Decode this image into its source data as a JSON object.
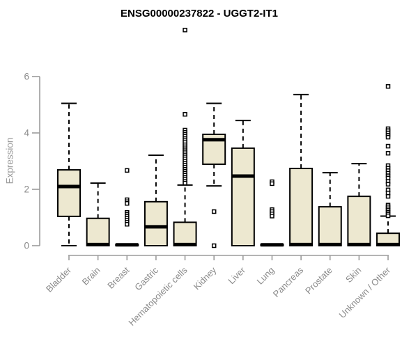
{
  "page": {
    "background": "#ffffff"
  },
  "chart_data": {
    "type": "boxplot",
    "title": "ENSG00000237822 - UGGT2-IT1",
    "ylabel": "Expression",
    "xlabel": "",
    "ylim": [
      0,
      6
    ],
    "yticks": [
      0,
      2,
      4,
      6
    ],
    "grid": false,
    "legend": "none",
    "categories": [
      "Bladder",
      "Brain",
      "Breast",
      "Gastric",
      "Hematopoietic cells",
      "Kidney",
      "Liver",
      "Lung",
      "Pancreas",
      "Prostate",
      "Skin",
      "Unknown / Other"
    ],
    "series": [
      {
        "name": "Bladder",
        "whisker_low": 0,
        "q1": 1.04,
        "median": 2.1,
        "q3": 2.69,
        "whisker_high": 5.05,
        "outliers": []
      },
      {
        "name": "Brain",
        "whisker_low": 0,
        "q1": 0,
        "median": 0.04,
        "q3": 0.97,
        "whisker_high": 2.22,
        "outliers": []
      },
      {
        "name": "Breast",
        "whisker_low": 0,
        "q1": 0,
        "median": 0.03,
        "q3": 0.05,
        "whisker_high": 0.05,
        "outliers": [
          2.67,
          1.63,
          1.56,
          1.5,
          1.18,
          1.11,
          1.04,
          0.97,
          0.9,
          0.83,
          0.76
        ]
      },
      {
        "name": "Gastric",
        "whisker_low": 0,
        "q1": 0,
        "median": 0.67,
        "q3": 1.56,
        "whisker_high": 3.21,
        "outliers": []
      },
      {
        "name": "Hematopoietic cells",
        "whisker_low": 0,
        "q1": 0,
        "median": 0.04,
        "q3": 0.83,
        "whisker_high": 2.15,
        "outliers": [
          7.65,
          4.66,
          4.1,
          4.02,
          3.95,
          3.88,
          3.8,
          3.73,
          3.66,
          3.58,
          3.51,
          3.44,
          3.37,
          3.3,
          3.22,
          3.15,
          3.08,
          3.0,
          2.93,
          2.86,
          2.78,
          2.71,
          2.64,
          2.57,
          2.5,
          2.42,
          2.35,
          2.28,
          2.22
        ]
      },
      {
        "name": "Kidney",
        "whisker_low": 2.12,
        "q1": 2.89,
        "median": 3.76,
        "q3": 3.95,
        "whisker_high": 5.05,
        "outliers": [
          1.21,
          0.0
        ]
      },
      {
        "name": "Liver",
        "whisker_low": 0,
        "q1": 0,
        "median": 2.47,
        "q3": 3.46,
        "whisker_high": 4.44,
        "outliers": []
      },
      {
        "name": "Lung",
        "whisker_low": 0,
        "q1": 0,
        "median": 0.03,
        "q3": 0.05,
        "whisker_high": 0.05,
        "outliers": [
          2.27,
          2.2,
          1.28,
          1.21,
          1.13,
          1.05
        ]
      },
      {
        "name": "Pancreas",
        "whisker_low": 0,
        "q1": 0,
        "median": 0.04,
        "q3": 2.74,
        "whisker_high": 5.36,
        "outliers": []
      },
      {
        "name": "Prostate",
        "whisker_low": 0,
        "q1": 0,
        "median": 0.04,
        "q3": 1.38,
        "whisker_high": 2.59,
        "outliers": []
      },
      {
        "name": "Skin",
        "whisker_low": 0,
        "q1": 0,
        "median": 0.04,
        "q3": 1.75,
        "whisker_high": 2.91,
        "outliers": []
      },
      {
        "name": "Unknown / Other",
        "whisker_low": 0,
        "q1": 0,
        "median": 0.04,
        "q3": 0.44,
        "whisker_high": 1.05,
        "outliers": [
          5.65,
          4.15,
          4.08,
          4.0,
          3.92,
          3.85,
          3.53,
          3.28,
          2.84,
          2.75,
          2.66,
          2.57,
          2.48,
          2.4,
          2.28,
          2.18,
          1.98,
          1.87,
          1.75,
          1.44,
          1.38,
          1.31,
          1.25,
          1.18,
          1.12,
          1.06
        ]
      }
    ],
    "colors": {
      "box_fill": "#EDE8D0",
      "box_border": "#000000",
      "median": "#000000",
      "axis": "#9b9b9b",
      "tick_text": "#8a8a8a",
      "outlier_fill": "#ffffff",
      "background": "#ffffff"
    }
  }
}
